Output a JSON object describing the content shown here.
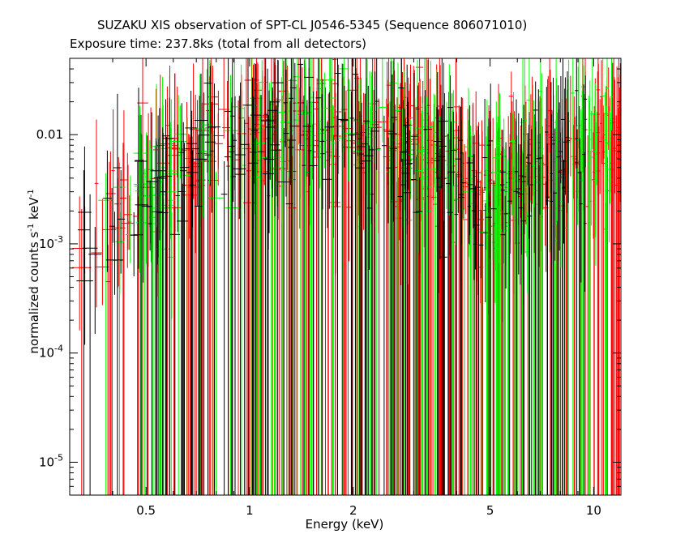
{
  "header": {
    "title": "SUZAKU XIS observation of SPT-CL J0546-5345 (Sequence 806071010)",
    "subtitle": "Exposure time: 237.8ks (total from all detectors)"
  },
  "chart_data": {
    "type": "scatter",
    "xlabel": "Energy (keV)",
    "ylabel_text": "normalized counts s",
    "ylabel_sup1": "-1",
    "ylabel_mid": " keV",
    "ylabel_sup2": "-1",
    "x_scale": "log",
    "y_scale": "log",
    "xlim": [
      0.3,
      12
    ],
    "ylim": [
      5e-06,
      0.05
    ],
    "x_ticks": [
      {
        "value": 0.5,
        "label": "0.5"
      },
      {
        "value": 1,
        "label": "1"
      },
      {
        "value": 2,
        "label": "2"
      },
      {
        "value": 5,
        "label": "5"
      },
      {
        "value": 10,
        "label": "10"
      }
    ],
    "y_ticks": [
      {
        "value": 1e-05,
        "base": "10",
        "exp": "-5"
      },
      {
        "value": 0.0001,
        "base": "10",
        "exp": "-4"
      },
      {
        "value": 0.001,
        "base": "10",
        "exp": "-3"
      },
      {
        "value": 0.01,
        "base": "0.01",
        "exp": ""
      }
    ],
    "series": [
      {
        "color": "#ff0000",
        "description": "red data with error bars",
        "count": 420,
        "seed": 11,
        "xmin": 0.32,
        "xmax": 12
      },
      {
        "color": "#00ff00",
        "description": "green data with error bars",
        "count": 260,
        "seed": 23,
        "xmin": 0.36,
        "xmax": 11.5
      },
      {
        "color": "#000000",
        "description": "black data with error bars",
        "count": 230,
        "seed": 37,
        "xmin": 0.3,
        "xmax": 9.5
      }
    ]
  }
}
